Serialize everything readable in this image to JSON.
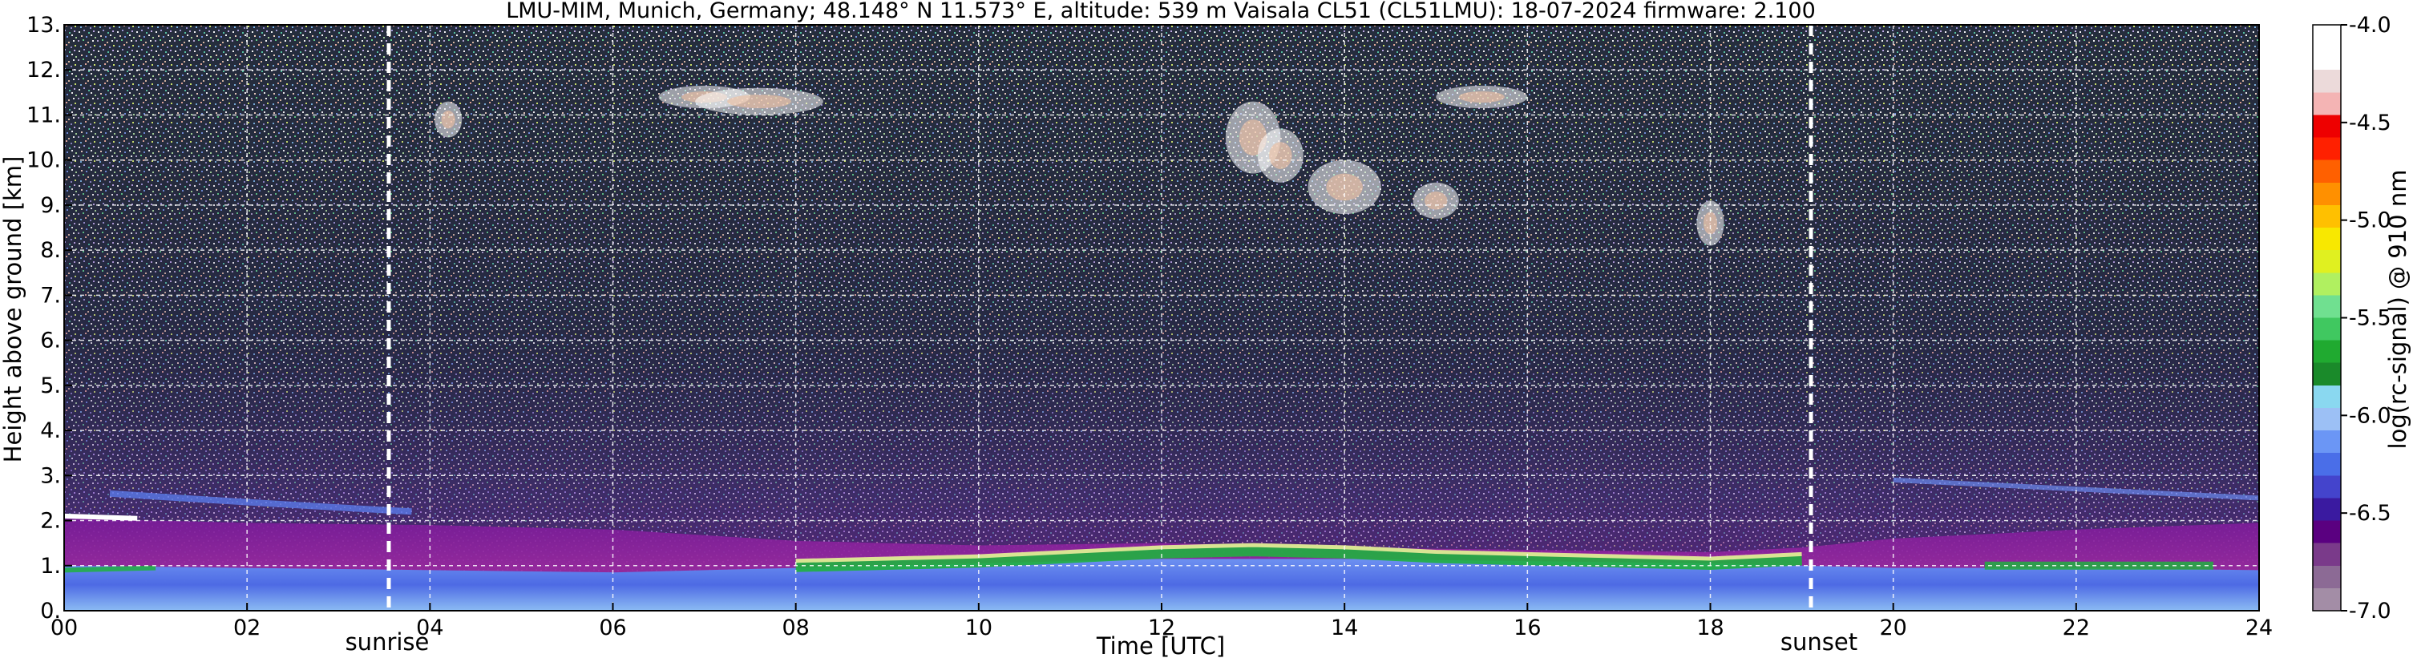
{
  "chart_data": {
    "type": "heatmap",
    "title": "LMU-MIM, Munich, Germany; 48.148° N 11.573° E, altitude: 539 m    Vaisala CL51 (CL51LMU): 18-07-2024    firmware: 2.100",
    "xlabel": "Time [UTC]",
    "ylabel": "Height above ground [km]",
    "colorbar_label": "log(rc-signal) @ 910 nm",
    "xlim": [
      0,
      24
    ],
    "ylim": [
      0,
      13
    ],
    "x_ticks": [
      0,
      2,
      4,
      6,
      8,
      10,
      12,
      14,
      16,
      18,
      20,
      22,
      24
    ],
    "x_tick_labels": [
      "00",
      "02",
      "04",
      "06",
      "08",
      "10",
      "12",
      "14",
      "16",
      "18",
      "20",
      "22",
      "24"
    ],
    "y_ticks": [
      0,
      1,
      2,
      3,
      4,
      5,
      6,
      7,
      8,
      9,
      10,
      11,
      12,
      13
    ],
    "y_tick_labels": [
      "0.",
      "1.",
      "2.",
      "3.",
      "4.",
      "5.",
      "6.",
      "7.",
      "8.",
      "9.",
      "10.",
      "11.",
      "12.",
      "13."
    ],
    "grid": true,
    "colorbar_range": [
      -7.0,
      -4.0
    ],
    "colorbar_ticks": [
      -7.0,
      -6.5,
      -6.0,
      -5.5,
      -5.0,
      -4.5,
      -4.0
    ],
    "colorbar_tick_labels": [
      "-7.0",
      "-6.5",
      "-6.0",
      "-5.5",
      "-5.0",
      "-4.5",
      "-4.0"
    ],
    "colormap": [
      "#a38da6",
      "#8c6a95",
      "#7a3a8a",
      "#5a0080",
      "#3a1aa0",
      "#4444cc",
      "#4a6ee8",
      "#6b96f5",
      "#9cc0f5",
      "#8ad8f0",
      "#1a8a2a",
      "#20aa30",
      "#40c860",
      "#70e090",
      "#b0f060",
      "#e0f020",
      "#f8e800",
      "#ffc000",
      "#ff9000",
      "#ff6000",
      "#ff2000",
      "#ee0000",
      "#f4b4b4",
      "#ecdada",
      "#ffffff",
      "#ffffff"
    ],
    "sunrise": {
      "x": 3.55,
      "label": "sunrise"
    },
    "sunset": {
      "x": 19.1,
      "label": "sunset"
    },
    "annotations": [
      "sunrise",
      "sunset"
    ]
  }
}
